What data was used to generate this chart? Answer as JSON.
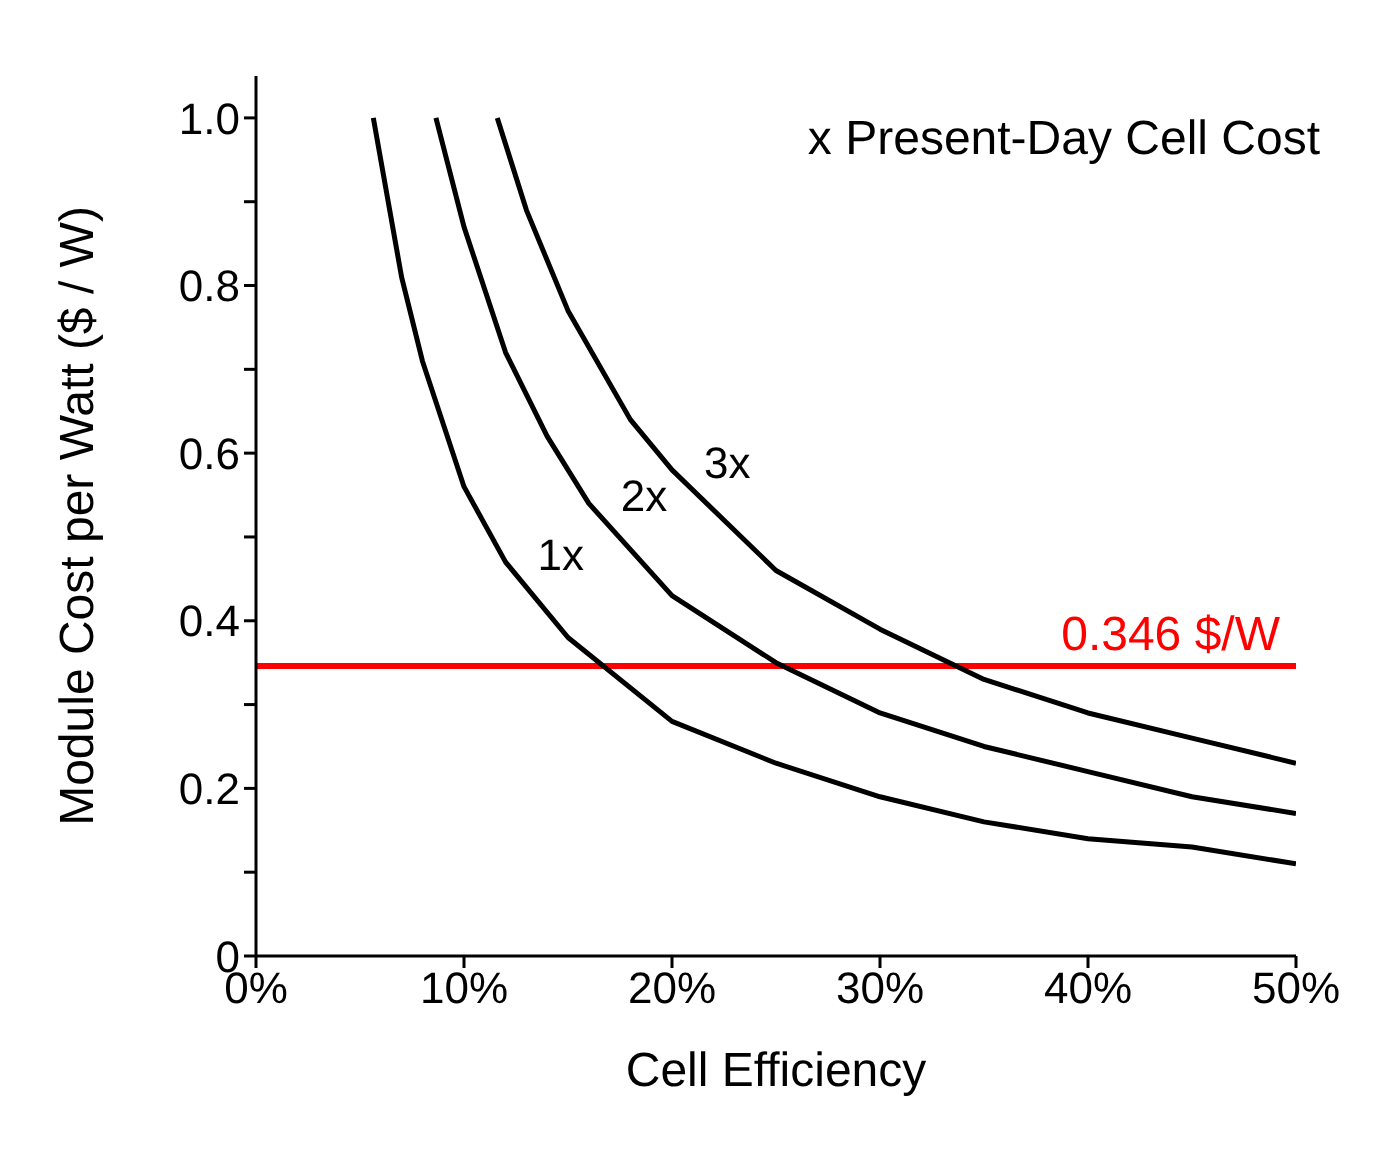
{
  "chart_data": {
    "type": "line",
    "xlabel": "Cell Efficiency",
    "ylabel": "Module Cost per Watt ($ / W)",
    "annotations": [
      "x Present-Day Cell Cost"
    ],
    "xlim": [
      0,
      50
    ],
    "xticks": [
      {
        "value": 0,
        "label": "0%"
      },
      {
        "value": 10,
        "label": "10%"
      },
      {
        "value": 20,
        "label": "20%"
      },
      {
        "value": 30,
        "label": "30%"
      },
      {
        "value": 40,
        "label": "40%"
      },
      {
        "value": 50,
        "label": "50%"
      }
    ],
    "ylim": [
      0,
      1.05
    ],
    "yticks": [
      0,
      {
        "value": 0.1,
        "label": null
      },
      {
        "value": 0.2,
        "label": "0.2"
      },
      {
        "value": 0.3,
        "label": null
      },
      {
        "value": 0.4,
        "label": "0.4"
      },
      {
        "value": 0.5,
        "label": null
      },
      {
        "value": 0.6,
        "label": "0.6"
      },
      {
        "value": 0.7,
        "label": null
      },
      {
        "value": 0.8,
        "label": "0.8"
      },
      {
        "value": 0.9,
        "label": null
      },
      {
        "value": 1,
        "label": "1.0"
      }
    ],
    "grid": false,
    "legend": false,
    "marker": "none",
    "line_style": "solid",
    "series": [
      {
        "name": "1x",
        "color": "#000000",
        "x": [
          5.64,
          7,
          8,
          10,
          12,
          15,
          20,
          25,
          30,
          35,
          40,
          45,
          50
        ],
        "values": [
          1.0,
          0.81,
          0.71,
          0.56,
          0.47,
          0.38,
          0.28,
          0.23,
          0.19,
          0.16,
          0.14,
          0.13,
          0.11
        ]
      },
      {
        "name": "2x",
        "color": "#000000",
        "x": [
          8.65,
          10,
          12,
          14,
          16,
          20,
          25,
          30,
          35,
          40,
          45,
          50
        ],
        "values": [
          1.0,
          0.87,
          0.72,
          0.62,
          0.54,
          0.43,
          0.35,
          0.29,
          0.25,
          0.22,
          0.19,
          0.17
        ]
      },
      {
        "name": "3x",
        "color": "#000000",
        "x": [
          11.6,
          13,
          15,
          18,
          20,
          25,
          30,
          35,
          40,
          45,
          50
        ],
        "values": [
          1.0,
          0.89,
          0.77,
          0.64,
          0.58,
          0.46,
          0.39,
          0.33,
          0.29,
          0.26,
          0.23
        ]
      }
    ],
    "ref_lines": [
      {
        "axis": "y",
        "value": 0.346,
        "label": "0.346 $/W",
        "color": "#ff0000"
      }
    ]
  }
}
